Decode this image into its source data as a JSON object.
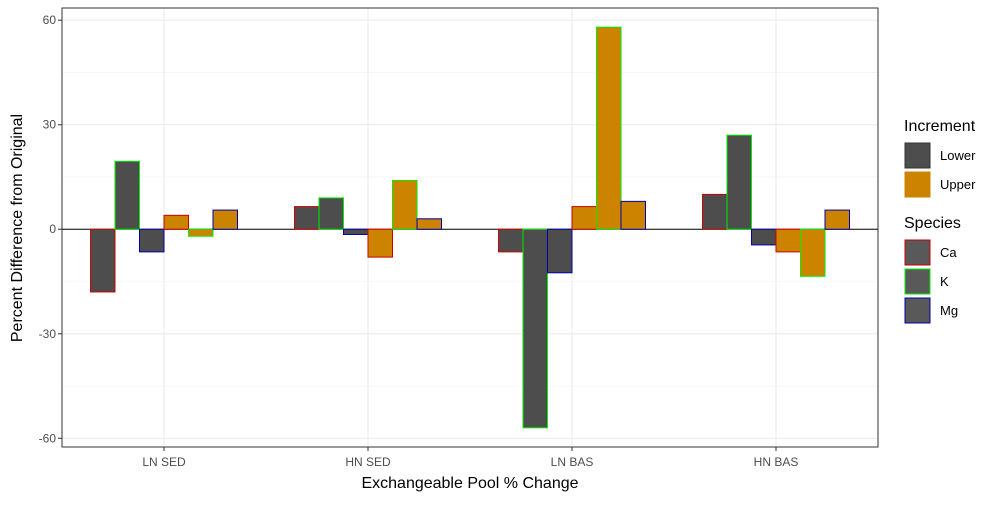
{
  "chart_data": {
    "type": "bar",
    "xlabel": "Exchangeable Pool % Change",
    "ylabel": "Percent Difference from Original",
    "categories": [
      "LN SED",
      "HN SED",
      "LN BAS",
      "HN BAS"
    ],
    "ylim": [
      -62.5,
      63.5
    ],
    "yticks": [
      -60,
      -30,
      0,
      30,
      60
    ],
    "grid": true,
    "legend_position": "right",
    "series_order": [
      {
        "species": "Ca",
        "increment": "Lower"
      },
      {
        "species": "K",
        "increment": "Lower"
      },
      {
        "species": "Mg",
        "increment": "Lower"
      },
      {
        "species": "Ca",
        "increment": "Upper"
      },
      {
        "species": "K",
        "increment": "Upper"
      },
      {
        "species": "Mg",
        "increment": "Upper"
      }
    ],
    "values": [
      [
        -18,
        19.5,
        -6.5,
        4,
        -2,
        5.5
      ],
      [
        6.5,
        9,
        -1.5,
        -8,
        14,
        3
      ],
      [
        -6.5,
        -57,
        -12.5,
        6.5,
        58,
        8
      ],
      [
        10,
        27,
        -4.5,
        -6.5,
        -13.5,
        5.5
      ]
    ],
    "legends": [
      {
        "title": "Increment",
        "items": [
          {
            "label": "Lower",
            "fill": "#4d4d4d",
            "stroke": "#333333"
          },
          {
            "label": "Upper",
            "fill": "#cc8400",
            "stroke": "#cc8400"
          }
        ]
      },
      {
        "title": "Species",
        "items": [
          {
            "label": "Ca",
            "fill": "#595959",
            "stroke": "#cc0000"
          },
          {
            "label": "K",
            "fill": "#595959",
            "stroke": "#00ee00"
          },
          {
            "label": "Mg",
            "fill": "#595959",
            "stroke": "#0000aa"
          }
        ]
      }
    ],
    "colors": {
      "Lower": "#4d4d4d",
      "Upper": "#cc8400",
      "Ca": "#cc0000",
      "K": "#00ee00",
      "Mg": "#0000aa"
    }
  }
}
